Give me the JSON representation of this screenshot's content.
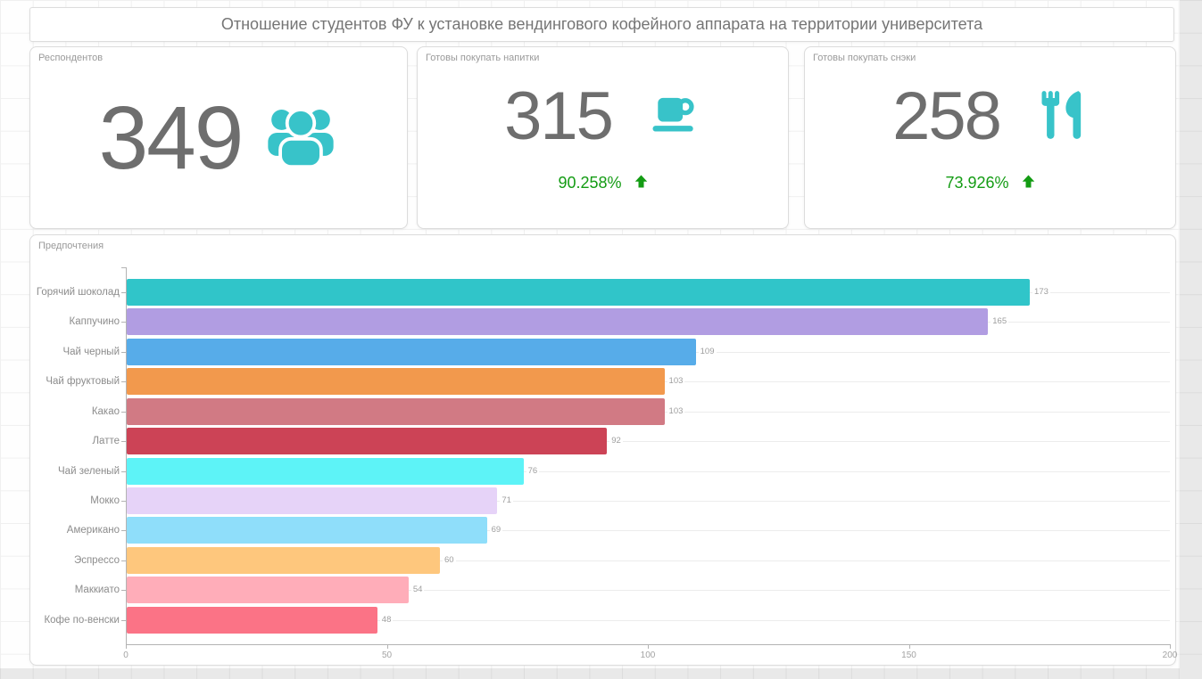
{
  "title": "Отношение студентов ФУ к установке вендингового кофейного аппарата на территории университета",
  "cards": [
    {
      "label": "Респондентов",
      "value": "349",
      "icon": "users-icon"
    },
    {
      "label": "Готовы покупать напитки",
      "value": "315",
      "icon": "coffee-cup-icon",
      "percent": "90.258%",
      "trend": "up"
    },
    {
      "label": "Готовы покупать снэки",
      "value": "258",
      "icon": "utensils-icon",
      "percent": "73.926%",
      "trend": "up"
    }
  ],
  "colors": {
    "accent_teal": "#38c3c9",
    "positive_green": "#149c14",
    "number_gray": "#6e6e6e",
    "title_gray": "#757575"
  },
  "chart_data": {
    "type": "bar",
    "orientation": "horizontal",
    "title": "Предпочтения",
    "categories": [
      "Горячий шоколад",
      "Каппучино",
      "Чай черный",
      "Чай фруктовый",
      "Какао",
      "Латте",
      "Чай зеленый",
      "Мокко",
      "Американо",
      "Эспрессо",
      "Маккиато",
      "Кофе по-венски"
    ],
    "values": [
      173,
      165,
      109,
      103,
      103,
      92,
      76,
      71,
      69,
      60,
      54,
      48
    ],
    "bar_colors": [
      "#30c5c9",
      "#b19de2",
      "#57ace9",
      "#f2994d",
      "#d17a84",
      "#cc4356",
      "#5df3f7",
      "#e6d3f8",
      "#8fdefa",
      "#fec77d",
      "#ffadb9",
      "#fb7386"
    ],
    "xlim": [
      0,
      200
    ],
    "x_ticks": [
      0,
      50,
      100,
      150,
      200
    ],
    "grid": "row-lines",
    "value_labels": true,
    "legend": "none"
  }
}
